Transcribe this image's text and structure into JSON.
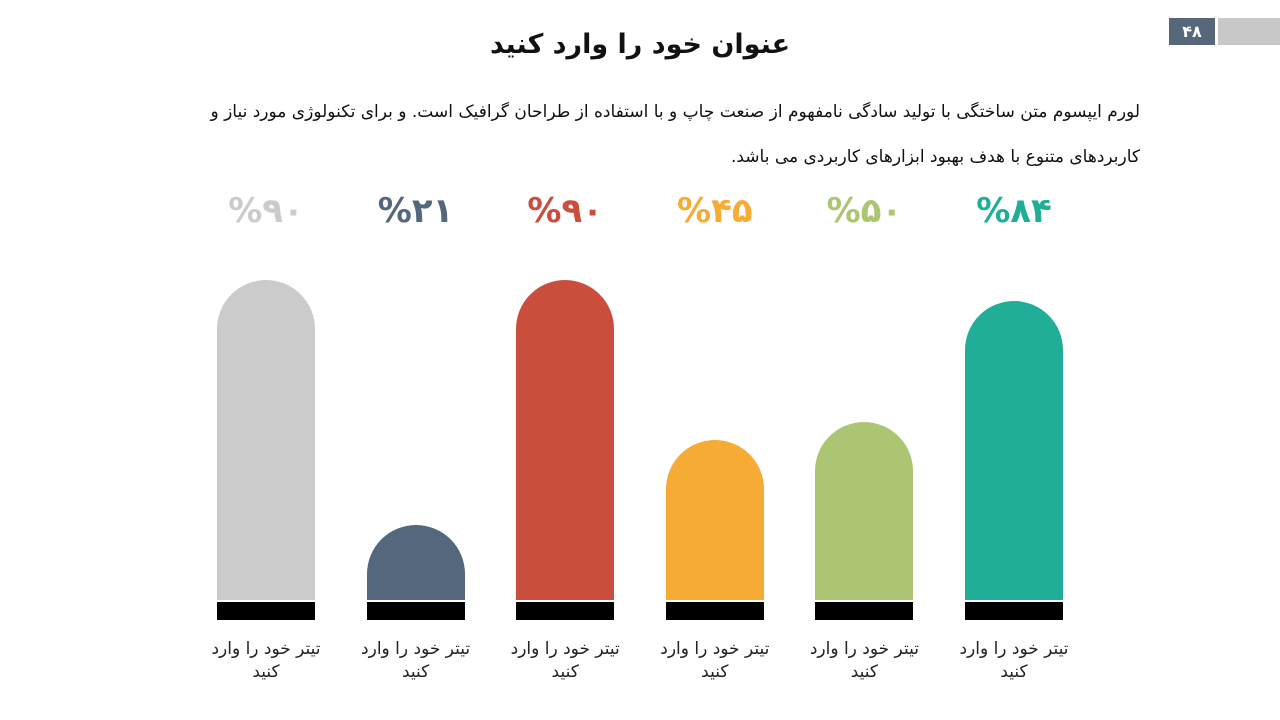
{
  "page_number": "۴۸",
  "title": "عنوان خود را وارد کنید",
  "body_text": "لورم ایپسوم متن ساختگی با تولید سادگی نامفهوم از صنعت چاپ و با استفاده از طراحان گرافیک است. و برای تکنولوژی مورد نیاز و کاربردهای متنوع با هدف بهبود ابزارهای کاربردی می باشد.",
  "colors": {
    "header_box": "#56677c",
    "header_bar": "#c8c8c8",
    "base": "#000000"
  },
  "chart_data": {
    "type": "bar",
    "categories": [
      "تیتر خود را وارد کنید",
      "تیتر خود را وارد کنید",
      "تیتر خود را وارد کنید",
      "تیتر خود را وارد کنید",
      "تیتر خود را وارد کنید",
      "تیتر خود را وارد کنید"
    ],
    "values": [
      84,
      50,
      45,
      90,
      21,
      90
    ],
    "value_labels": [
      "%۸۴",
      "%۵۰",
      "%۴۵",
      "%۹۰",
      "%۲۱",
      "%۹۰"
    ],
    "colors": [
      "#20ae98",
      "#abc572",
      "#f6ab34",
      "#c94e3c",
      "#55677c",
      "#cbcbcb"
    ],
    "category_order": "right-to-left",
    "title": "",
    "xlabel": "",
    "ylabel": "",
    "ylim": [
      0,
      100
    ],
    "grid": false,
    "legend": "none"
  }
}
